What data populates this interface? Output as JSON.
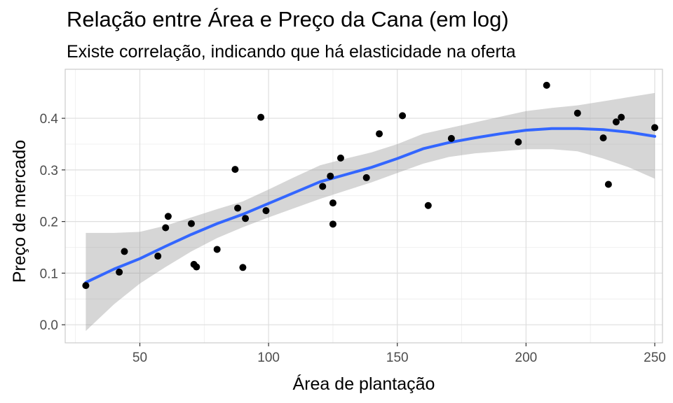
{
  "chart_data": {
    "type": "scatter",
    "title": "Relação entre Área e Preço da Cana (em log)",
    "subtitle": "Existe correlação, indicando que há elasticidade na oferta",
    "xlabel": "Área de plantação",
    "ylabel": "Preço de mercado",
    "xlim": [
      21,
      253
    ],
    "ylim": [
      -0.035,
      0.495
    ],
    "x_ticks": [
      50,
      100,
      150,
      200,
      250
    ],
    "y_ticks": [
      0.0,
      0.1,
      0.2,
      0.3,
      0.4
    ],
    "x_tick_labels": [
      "50",
      "100",
      "150",
      "200",
      "250"
    ],
    "y_tick_labels": [
      "0.0",
      "0.1",
      "0.2",
      "0.3",
      "0.4"
    ],
    "grid": true,
    "colors": {
      "points": "#000000",
      "smooth_line": "#3366ff",
      "confidence_band": "#999999"
    },
    "points": [
      {
        "x": 29,
        "y": 0.076
      },
      {
        "x": 42,
        "y": 0.102
      },
      {
        "x": 44,
        "y": 0.142
      },
      {
        "x": 57,
        "y": 0.133
      },
      {
        "x": 60,
        "y": 0.188
      },
      {
        "x": 61,
        "y": 0.21
      },
      {
        "x": 70,
        "y": 0.196
      },
      {
        "x": 71,
        "y": 0.117
      },
      {
        "x": 72,
        "y": 0.112
      },
      {
        "x": 80,
        "y": 0.146
      },
      {
        "x": 87,
        "y": 0.301
      },
      {
        "x": 88,
        "y": 0.226
      },
      {
        "x": 90,
        "y": 0.111
      },
      {
        "x": 91,
        "y": 0.206
      },
      {
        "x": 97,
        "y": 0.402
      },
      {
        "x": 99,
        "y": 0.221
      },
      {
        "x": 121,
        "y": 0.268
      },
      {
        "x": 124,
        "y": 0.288
      },
      {
        "x": 125,
        "y": 0.236
      },
      {
        "x": 125,
        "y": 0.195
      },
      {
        "x": 128,
        "y": 0.323
      },
      {
        "x": 138,
        "y": 0.285
      },
      {
        "x": 143,
        "y": 0.37
      },
      {
        "x": 152,
        "y": 0.405
      },
      {
        "x": 162,
        "y": 0.231
      },
      {
        "x": 171,
        "y": 0.361
      },
      {
        "x": 197,
        "y": 0.354
      },
      {
        "x": 208,
        "y": 0.464
      },
      {
        "x": 220,
        "y": 0.41
      },
      {
        "x": 230,
        "y": 0.362
      },
      {
        "x": 232,
        "y": 0.272
      },
      {
        "x": 235,
        "y": 0.393
      },
      {
        "x": 237,
        "y": 0.402
      },
      {
        "x": 250,
        "y": 0.382
      }
    ],
    "smooth": {
      "method": "loess",
      "x": [
        29,
        40,
        50,
        60,
        70,
        80,
        90,
        100,
        110,
        120,
        130,
        140,
        150,
        160,
        170,
        180,
        190,
        200,
        210,
        220,
        230,
        240,
        250
      ],
      "y": [
        0.082,
        0.108,
        0.128,
        0.152,
        0.175,
        0.196,
        0.214,
        0.235,
        0.256,
        0.277,
        0.291,
        0.305,
        0.322,
        0.341,
        0.353,
        0.362,
        0.37,
        0.377,
        0.38,
        0.38,
        0.378,
        0.373,
        0.365
      ],
      "lower": [
        -0.012,
        0.04,
        0.08,
        0.112,
        0.142,
        0.168,
        0.189,
        0.208,
        0.226,
        0.244,
        0.26,
        0.276,
        0.294,
        0.312,
        0.325,
        0.332,
        0.336,
        0.34,
        0.34,
        0.336,
        0.322,
        0.305,
        0.283
      ],
      "upper": [
        0.178,
        0.178,
        0.18,
        0.192,
        0.208,
        0.224,
        0.239,
        0.262,
        0.286,
        0.309,
        0.322,
        0.334,
        0.35,
        0.37,
        0.381,
        0.392,
        0.403,
        0.414,
        0.42,
        0.425,
        0.433,
        0.441,
        0.449
      ]
    }
  }
}
